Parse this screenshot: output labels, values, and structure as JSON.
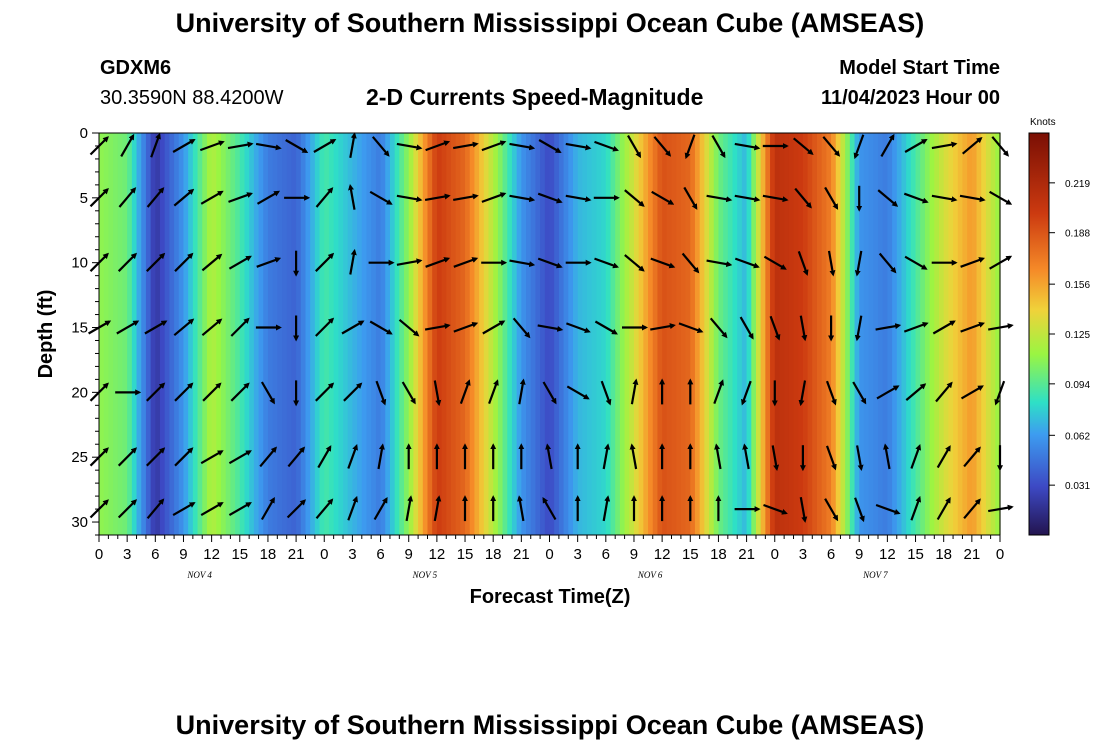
{
  "header": {
    "title": "University of Southern Mississippi Ocean Cube (AMSEAS)",
    "station": "GDXM6",
    "coords": "30.3590N  88.4200W",
    "subtitle": "2-D Currents Speed-Magnitude",
    "model_start_label": "Model Start Time",
    "model_start_value": "11/04/2023 Hour 00"
  },
  "footer": {
    "title": "University of Southern Mississippi Ocean Cube (AMSEAS)"
  },
  "chart_data": {
    "type": "heatmap",
    "xlabel": "Forecast Time(Z)",
    "ylabel": "Depth (ft)",
    "x_tick_labels": [
      "0",
      "3",
      "6",
      "9",
      "12",
      "15",
      "18",
      "21",
      "0",
      "3",
      "6",
      "9",
      "12",
      "15",
      "18",
      "21",
      "0",
      "3",
      "6",
      "9",
      "12",
      "15",
      "18",
      "21",
      "0",
      "3",
      "6",
      "9",
      "12",
      "15",
      "18",
      "21",
      "0"
    ],
    "day_labels": [
      {
        "label": "NOV 4",
        "hour": 12
      },
      {
        "label": "NOV 5",
        "hour": 36
      },
      {
        "label": "NOV 6",
        "hour": 60
      },
      {
        "label": "NOV 7",
        "hour": 84
      }
    ],
    "xlim": [
      0,
      96
    ],
    "ylim": [
      0,
      31
    ],
    "y_ticks": [
      0,
      5,
      10,
      15,
      20,
      25,
      30
    ],
    "colorbar": {
      "unit": "Knots",
      "min": 0.0,
      "max": 0.25,
      "ticks": [
        0.219,
        0.188,
        0.156,
        0.125,
        0.094,
        0.062,
        0.031
      ]
    },
    "speed_profile_by_hour": {
      "hours": [
        0,
        3,
        6,
        9,
        12,
        15,
        18,
        21,
        24,
        27,
        30,
        33,
        36,
        39,
        42,
        45,
        48,
        51,
        54,
        57,
        60,
        63,
        66,
        69,
        72,
        75,
        78,
        81,
        84,
        87,
        90,
        93,
        96
      ],
      "speed_knots": [
        0.11,
        0.1,
        0.02,
        0.06,
        0.12,
        0.09,
        0.05,
        0.04,
        0.09,
        0.07,
        0.05,
        0.11,
        0.2,
        0.18,
        0.12,
        0.06,
        0.03,
        0.07,
        0.08,
        0.13,
        0.19,
        0.18,
        0.1,
        0.07,
        0.21,
        0.2,
        0.17,
        0.06,
        0.05,
        0.09,
        0.13,
        0.16,
        0.11
      ]
    },
    "arrow_grid": {
      "hours": [
        0,
        3,
        6,
        9,
        12,
        15,
        18,
        21,
        24,
        27,
        30,
        33,
        36,
        39,
        42,
        45,
        48,
        51,
        54,
        57,
        60,
        63,
        66,
        69,
        72,
        75,
        78,
        81,
        84,
        87,
        90,
        93,
        96
      ],
      "depths_ft": [
        1,
        5,
        10,
        15,
        20,
        25,
        29
      ],
      "direction_deg": [
        [
          45,
          30,
          20,
          60,
          70,
          80,
          100,
          120,
          60,
          10,
          140,
          100,
          70,
          80,
          70,
          100,
          120,
          100,
          110,
          150,
          140,
          200,
          150,
          100,
          90,
          130,
          140,
          200,
          30,
          60,
          80,
          50,
          140
        ],
        [
          45,
          40,
          40,
          50,
          60,
          70,
          60,
          90,
          40,
          350,
          120,
          100,
          80,
          80,
          70,
          100,
          110,
          100,
          90,
          130,
          120,
          150,
          100,
          100,
          100,
          140,
          150,
          180,
          130,
          110,
          100,
          100,
          120
        ],
        [
          45,
          45,
          45,
          45,
          50,
          60,
          70,
          180,
          45,
          10,
          90,
          80,
          70,
          70,
          90,
          100,
          110,
          90,
          110,
          130,
          110,
          140,
          100,
          110,
          120,
          160,
          170,
          190,
          140,
          120,
          90,
          70,
          60
        ],
        [
          60,
          60,
          60,
          50,
          50,
          45,
          90,
          180,
          45,
          60,
          120,
          130,
          80,
          70,
          60,
          140,
          100,
          110,
          120,
          90,
          80,
          110,
          140,
          150,
          160,
          170,
          180,
          190,
          80,
          70,
          60,
          70,
          80
        ],
        [
          45,
          90,
          45,
          45,
          45,
          45,
          150,
          180,
          45,
          45,
          160,
          150,
          170,
          20,
          20,
          10,
          150,
          120,
          160,
          10,
          0,
          0,
          20,
          200,
          180,
          190,
          160,
          150,
          60,
          50,
          40,
          60,
          200
        ],
        [
          45,
          45,
          45,
          45,
          60,
          60,
          40,
          40,
          30,
          20,
          10,
          0,
          0,
          0,
          0,
          0,
          350,
          0,
          10,
          350,
          0,
          0,
          350,
          350,
          170,
          180,
          160,
          170,
          350,
          20,
          30,
          40,
          180
        ],
        [
          45,
          45,
          40,
          60,
          60,
          60,
          30,
          45,
          40,
          20,
          30,
          10,
          10,
          0,
          0,
          350,
          330,
          0,
          10,
          0,
          0,
          0,
          0,
          90,
          110,
          170,
          150,
          160,
          110,
          20,
          30,
          40,
          80
        ]
      ]
    }
  }
}
